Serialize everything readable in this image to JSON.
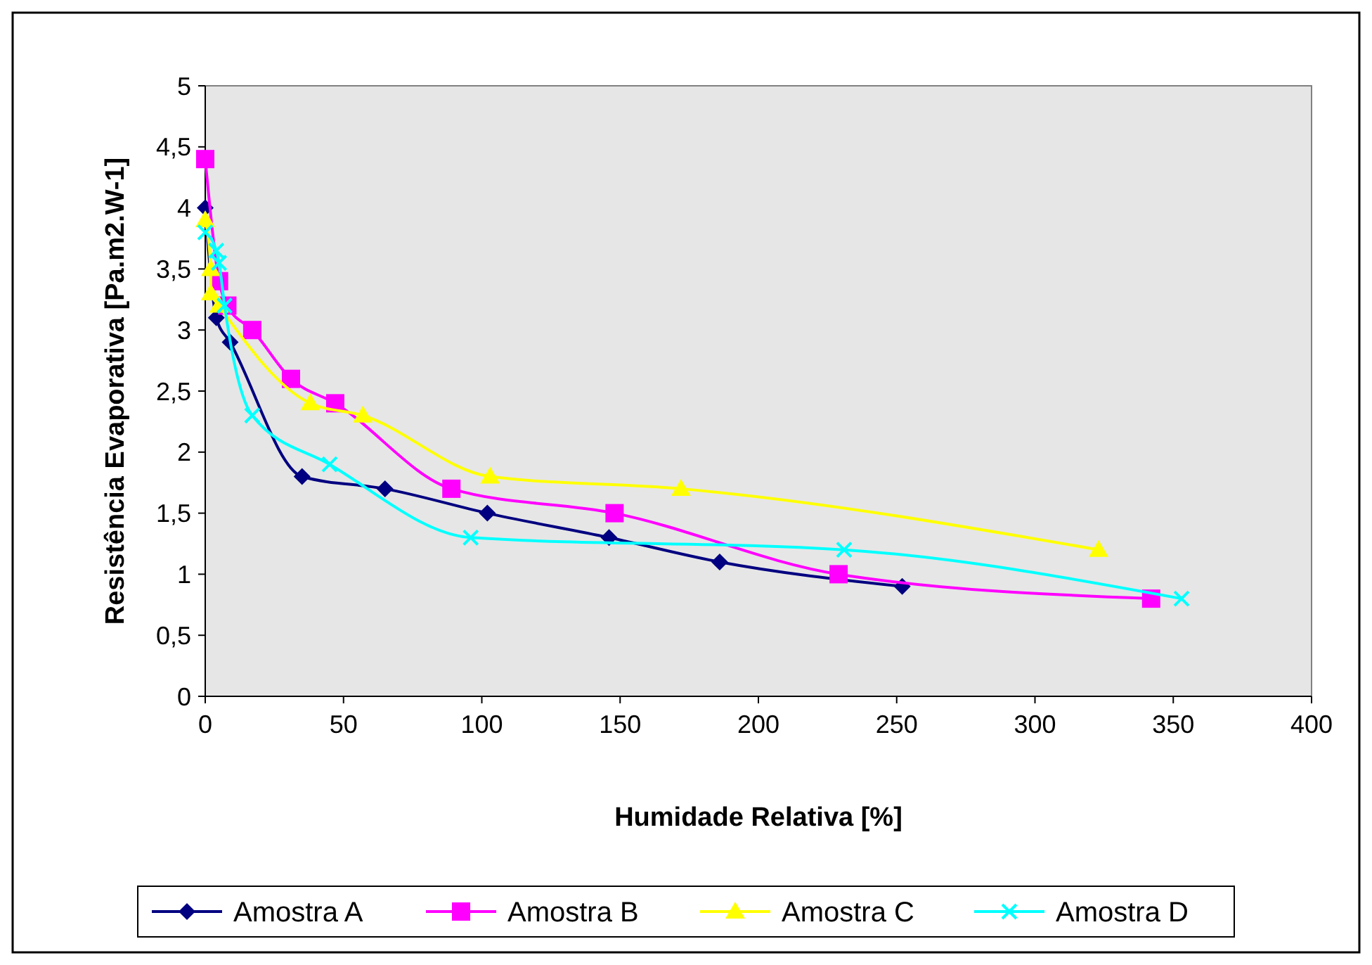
{
  "chart_data": {
    "type": "line",
    "xlabel": "Humidade Relativa [%]",
    "ylabel": "Resistência Evaporativa [Pa.m2.W-1]",
    "xlim": [
      0,
      400
    ],
    "xticks": [
      0,
      50,
      100,
      150,
      200,
      250,
      300,
      350,
      400
    ],
    "ylim": [
      0,
      5
    ],
    "yticks": [
      0,
      {
        "value": 0.5,
        "label": "0,5"
      },
      1,
      {
        "value": 1.5,
        "label": "1,5"
      },
      2,
      {
        "value": 2.5,
        "label": "2,5"
      },
      3,
      {
        "value": 3.5,
        "label": "3,5"
      },
      4,
      {
        "value": 4.5,
        "label": "4,5"
      },
      5
    ],
    "grid": false,
    "legend": "bottom",
    "series": [
      {
        "name": "Amostra A",
        "color": "#000080",
        "marker": "diamond",
        "x": [
          0,
          4,
          9,
          35,
          65,
          102,
          146,
          186,
          252
        ],
        "values": [
          4,
          3.1,
          2.9,
          1.8,
          1.7,
          1.5,
          1.3,
          1.1,
          0.9
        ]
      },
      {
        "name": "Amostra B",
        "color": "#ff00ff",
        "marker": "square",
        "x": [
          0,
          5,
          8,
          17,
          31,
          47,
          89,
          148,
          229,
          342
        ],
        "values": [
          4.4,
          3.4,
          3.2,
          3.0,
          2.6,
          2.4,
          1.7,
          1.5,
          1.0,
          0.8
        ]
      },
      {
        "name": "Amostra C",
        "color": "#ffff00",
        "marker": "triangle",
        "x": [
          0,
          2,
          2,
          5,
          38,
          57,
          103,
          172,
          323
        ],
        "values": [
          3.9,
          3.5,
          3.3,
          3.2,
          2.4,
          2.3,
          1.8,
          1.7,
          1.2
        ]
      },
      {
        "name": "Amostra D",
        "color": "#00ffff",
        "marker": "cross",
        "x": [
          0,
          4,
          5,
          7,
          17,
          45,
          96,
          231,
          353
        ],
        "values": [
          3.8,
          3.65,
          3.55,
          3.2,
          2.3,
          1.9,
          1.3,
          1.2,
          0.8
        ]
      }
    ]
  }
}
